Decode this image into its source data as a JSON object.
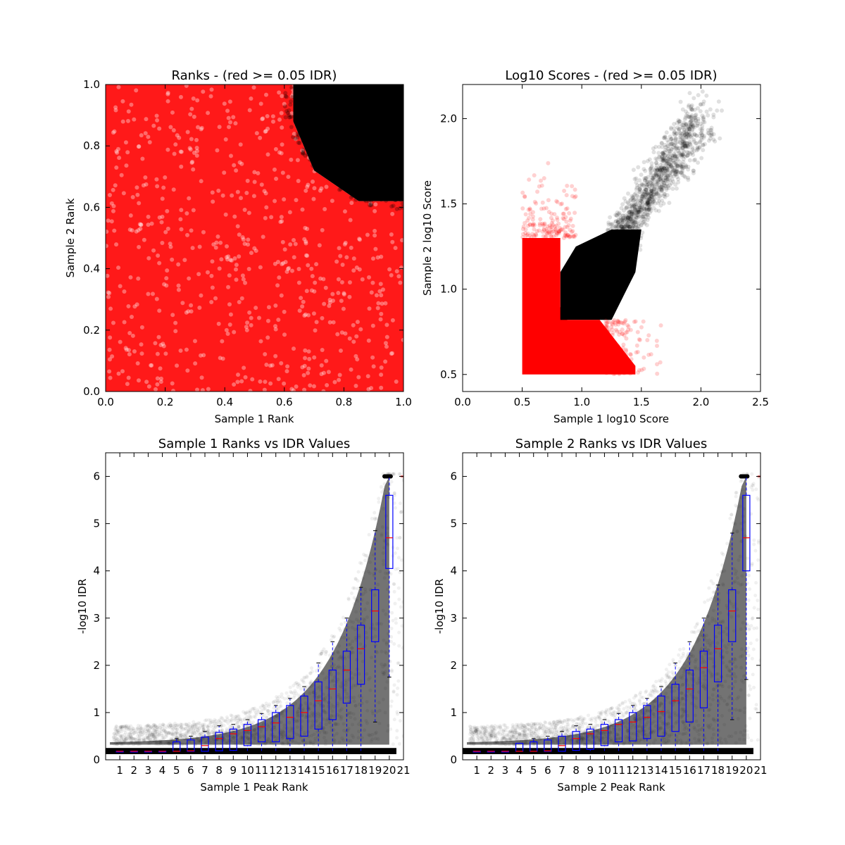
{
  "figure": {
    "background": "#ffffff"
  },
  "chart_data": [
    {
      "id": "ranks",
      "type": "scatter",
      "title": "Ranks - (red >= 0.05 IDR)",
      "xlabel": "Sample 1 Rank",
      "ylabel": "Sample 2 Rank",
      "xlim": [
        0.0,
        1.0
      ],
      "ylim": [
        0.0,
        1.0
      ],
      "xticks": [
        "0.0",
        "0.2",
        "0.4",
        "0.6",
        "0.8",
        "1.0"
      ],
      "yticks": [
        "0.0",
        "0.2",
        "0.4",
        "0.6",
        "0.8",
        "1.0"
      ],
      "xtick_values": [
        0.0,
        0.2,
        0.4,
        0.6,
        0.8,
        1.0
      ],
      "ytick_values": [
        0.0,
        0.2,
        0.4,
        0.6,
        0.8,
        1.0
      ],
      "series": [
        {
          "color": "#ff0000",
          "description": "peaks with IDR >= 0.05, fills the whole unit square except the top-right corner",
          "region_points": [
            [
              0.0,
              0.0
            ],
            [
              1.0,
              0.0
            ],
            [
              1.0,
              0.62
            ],
            [
              0.85,
              0.62
            ],
            [
              0.7,
              0.72
            ],
            [
              0.63,
              0.88
            ],
            [
              0.63,
              1.0
            ],
            [
              0.0,
              1.0
            ]
          ]
        },
        {
          "color": "#000000",
          "description": "peaks with IDR < 0.05, dense cloud in top-right corner",
          "region_points": [
            [
              1.0,
              1.0
            ],
            [
              1.0,
              0.62
            ],
            [
              0.85,
              0.62
            ],
            [
              0.7,
              0.72
            ],
            [
              0.63,
              0.88
            ],
            [
              0.63,
              1.0
            ]
          ]
        }
      ]
    },
    {
      "id": "scores",
      "type": "scatter",
      "title": "Log10 Scores - (red >= 0.05 IDR)",
      "xlabel": "Sample 1 log10 Score",
      "ylabel": "Sample 2 log10 Score",
      "xlim": [
        0.0,
        2.5
      ],
      "ylim": [
        0.4,
        2.2
      ],
      "xticks": [
        "0.0",
        "0.5",
        "1.0",
        "1.5",
        "2.0",
        "2.5"
      ],
      "yticks": [
        "0.5",
        "1.0",
        "1.5",
        "2.0"
      ],
      "xtick_values": [
        0.0,
        0.5,
        1.0,
        1.5,
        2.0,
        2.5
      ],
      "ytick_values": [
        0.5,
        1.0,
        1.5,
        2.0
      ],
      "series": [
        {
          "color": "#ff0000",
          "description": "low scores near the 0.5 floor",
          "region_points": [
            [
              0.5,
              0.5
            ],
            [
              1.45,
              0.5
            ],
            [
              1.45,
              0.55
            ],
            [
              1.15,
              0.82
            ],
            [
              0.82,
              0.82
            ],
            [
              0.82,
              1.3
            ],
            [
              0.5,
              1.3
            ]
          ]
        },
        {
          "color": "#000000",
          "description": "correlated high scores along the diagonal",
          "trend": [
            [
              0.82,
              0.82
            ],
            [
              1.0,
              0.95
            ],
            [
              1.2,
              1.15
            ],
            [
              1.5,
              1.45
            ],
            [
              1.8,
              1.8
            ],
            [
              2.0,
              2.0
            ]
          ]
        }
      ]
    },
    {
      "id": "s1idr",
      "type": "box",
      "title": "Sample 1 Ranks vs IDR Values",
      "xlabel": "Sample 1 Peak Rank",
      "ylabel": "-log10 IDR",
      "xlim": [
        0,
        21
      ],
      "ylim": [
        0,
        6.5
      ],
      "xticks": [
        "1",
        "2",
        "3",
        "4",
        "5",
        "6",
        "7",
        "8",
        "9",
        "10",
        "11",
        "12",
        "13",
        "14",
        "15",
        "16",
        "17",
        "18",
        "19",
        "20",
        "21"
      ],
      "yticks": [
        "0",
        "1",
        "2",
        "3",
        "4",
        "5",
        "6"
      ],
      "ytick_values": [
        0,
        1,
        2,
        3,
        4,
        5,
        6
      ],
      "boxes": {
        "positions": [
          1,
          2,
          3,
          4,
          5,
          6,
          7,
          8,
          9,
          10,
          11,
          12,
          13,
          14,
          15,
          16,
          17,
          18,
          19,
          20
        ],
        "median": [
          0.18,
          0.18,
          0.18,
          0.18,
          0.18,
          0.19,
          0.3,
          0.45,
          0.55,
          0.62,
          0.7,
          0.78,
          0.9,
          1.0,
          1.25,
          1.5,
          1.9,
          2.35,
          3.15,
          4.7
        ],
        "q1": [
          0.18,
          0.18,
          0.18,
          0.18,
          0.18,
          0.18,
          0.18,
          0.19,
          0.2,
          0.3,
          0.38,
          0.38,
          0.45,
          0.5,
          0.65,
          0.85,
          1.2,
          1.6,
          2.5,
          4.05
        ],
        "q3": [
          0.18,
          0.18,
          0.18,
          0.18,
          0.38,
          0.42,
          0.48,
          0.58,
          0.65,
          0.75,
          0.85,
          1.0,
          1.15,
          1.35,
          1.65,
          1.9,
          2.3,
          2.85,
          3.6,
          5.6
        ],
        "whisker_low": [
          0.18,
          0.18,
          0.18,
          0.18,
          0.18,
          0.18,
          0.18,
          0.18,
          0.18,
          0.18,
          0.18,
          0.18,
          0.18,
          0.18,
          0.18,
          0.18,
          0.18,
          0.18,
          0.8,
          1.75
        ],
        "whisker_high": [
          0.18,
          0.18,
          0.18,
          0.18,
          0.45,
          0.5,
          0.6,
          0.72,
          0.75,
          0.85,
          0.98,
          1.15,
          1.3,
          1.55,
          2.05,
          2.5,
          3.0,
          3.65,
          4.85,
          6.0
        ],
        "outlier_value": 6.0
      },
      "scatter_color": "#000000"
    },
    {
      "id": "s2idr",
      "type": "box",
      "title": "Sample 2 Ranks vs IDR Values",
      "xlabel": "Sample 2 Peak Rank",
      "ylabel": "-log10 IDR",
      "xlim": [
        0,
        21
      ],
      "ylim": [
        0,
        6.5
      ],
      "xticks": [
        "1",
        "2",
        "3",
        "4",
        "5",
        "6",
        "7",
        "8",
        "9",
        "10",
        "11",
        "12",
        "13",
        "14",
        "15",
        "16",
        "17",
        "18",
        "19",
        "20",
        "21"
      ],
      "yticks": [
        "0",
        "1",
        "2",
        "3",
        "4",
        "5",
        "6"
      ],
      "ytick_values": [
        0,
        1,
        2,
        3,
        4,
        5,
        6
      ],
      "boxes": {
        "positions": [
          1,
          2,
          3,
          4,
          5,
          6,
          7,
          8,
          9,
          10,
          11,
          12,
          13,
          14,
          15,
          16,
          17,
          18,
          19,
          20
        ],
        "median": [
          0.18,
          0.18,
          0.18,
          0.18,
          0.18,
          0.19,
          0.3,
          0.45,
          0.55,
          0.62,
          0.75,
          0.8,
          0.9,
          1.02,
          1.25,
          1.5,
          1.95,
          2.35,
          3.15,
          4.7
        ],
        "q1": [
          0.18,
          0.18,
          0.18,
          0.18,
          0.18,
          0.18,
          0.18,
          0.2,
          0.22,
          0.3,
          0.38,
          0.4,
          0.45,
          0.5,
          0.6,
          0.8,
          1.1,
          1.65,
          2.5,
          4.0
        ],
        "q3": [
          0.18,
          0.18,
          0.18,
          0.35,
          0.38,
          0.42,
          0.5,
          0.6,
          0.65,
          0.75,
          0.85,
          1.0,
          1.15,
          1.35,
          1.6,
          1.9,
          2.3,
          2.85,
          3.6,
          5.6
        ],
        "whisker_low": [
          0.18,
          0.18,
          0.18,
          0.18,
          0.18,
          0.18,
          0.18,
          0.18,
          0.18,
          0.18,
          0.18,
          0.18,
          0.18,
          0.18,
          0.18,
          0.18,
          0.18,
          0.18,
          0.85,
          1.7
        ],
        "whisker_high": [
          0.18,
          0.18,
          0.18,
          0.35,
          0.45,
          0.5,
          0.6,
          0.72,
          0.75,
          0.85,
          0.98,
          1.15,
          1.3,
          1.55,
          2.05,
          2.5,
          3.0,
          3.7,
          4.8,
          6.0
        ],
        "outlier_value": 6.0
      },
      "scatter_color": "#000000"
    }
  ]
}
